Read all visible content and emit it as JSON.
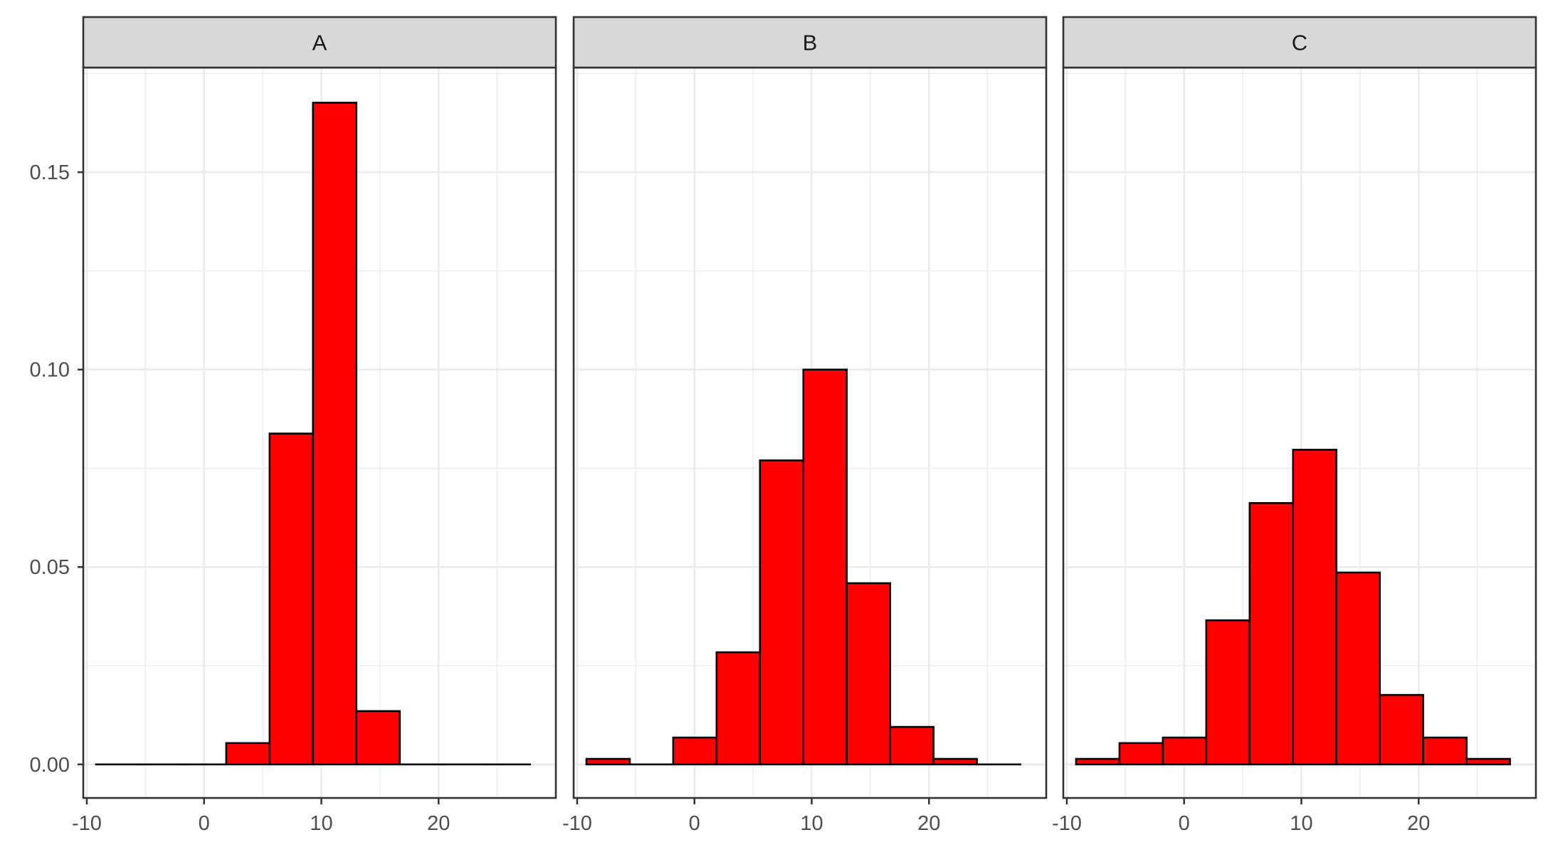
{
  "chart_data": {
    "type": "bar",
    "subtype": "faceted-histogram",
    "x_ticks": [
      -10,
      0,
      10,
      20
    ],
    "y_ticks": [
      0.0,
      0.05,
      0.1,
      0.15
    ],
    "y_tick_labels": [
      "0.00",
      "0.05",
      "0.10",
      "0.15"
    ],
    "x_tick_labels": [
      "-10",
      "0",
      "10",
      "20"
    ],
    "xlim": [
      -10.3,
      30.0
    ],
    "ylim": [
      -0.0085,
      0.1765
    ],
    "bin_edges": [
      -9.21,
      -5.51,
      -1.81,
      1.89,
      5.59,
      9.29,
      12.99,
      16.69,
      20.39,
      24.09,
      27.79
    ],
    "grid": true,
    "theme": "bw",
    "colors": {
      "fill": "#ff0000",
      "outline": "#000000",
      "strip": "#d9d9d9",
      "grid": "#ebebeb"
    },
    "panels": [
      {
        "name": "A",
        "values": [
          0.0,
          0.0,
          0.0,
          0.0054,
          0.0838,
          0.1676,
          0.0135,
          0.0,
          0.0,
          0.0
        ]
      },
      {
        "name": "B",
        "values": [
          0.0014,
          0.0,
          0.0068,
          0.0284,
          0.077,
          0.1,
          0.0459,
          0.0095,
          0.0014,
          0.0
        ]
      },
      {
        "name": "C",
        "values": [
          0.0014,
          0.0054,
          0.0068,
          0.0365,
          0.0662,
          0.0797,
          0.0486,
          0.0176,
          0.0068,
          0.0014
        ]
      }
    ]
  }
}
